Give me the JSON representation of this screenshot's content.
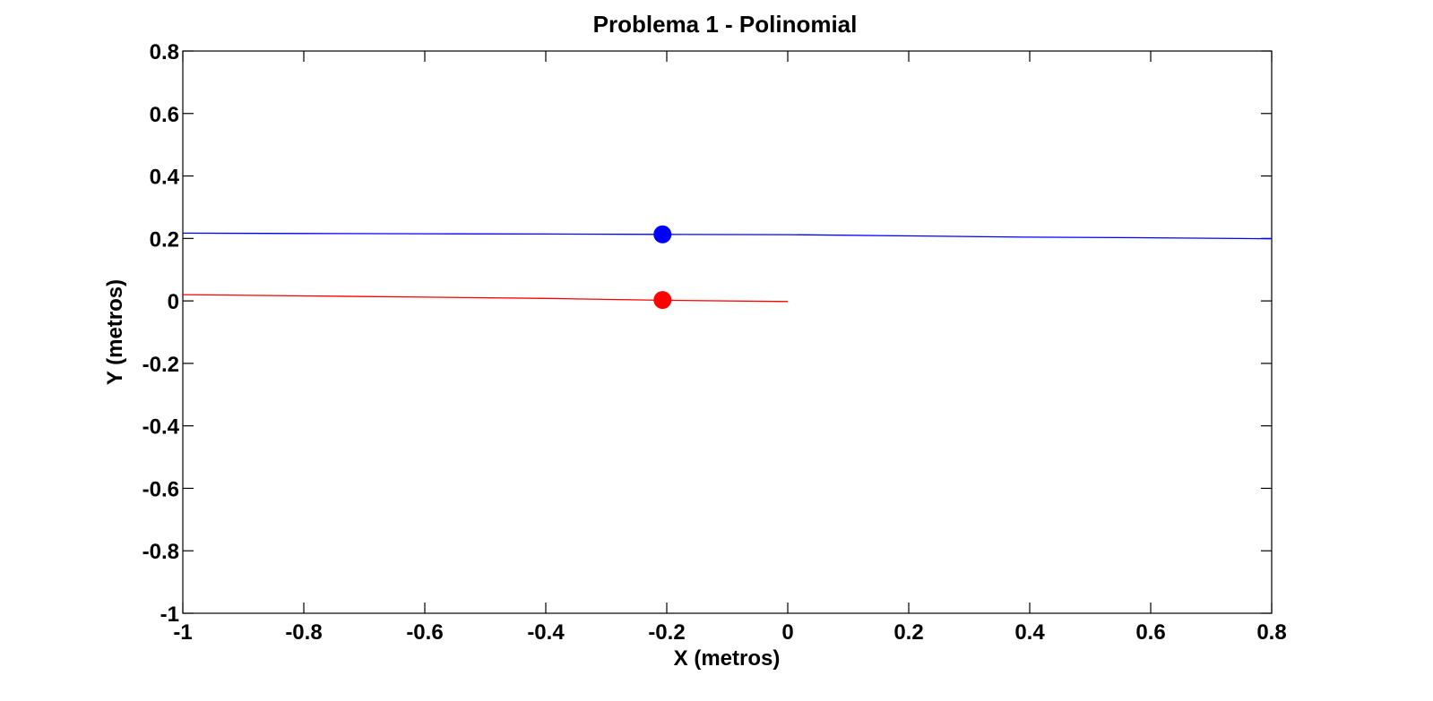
{
  "chart_data": {
    "type": "line",
    "title": "Problema 1 - Polinomial",
    "xlabel": "X (metros)",
    "ylabel": "Y (metros)",
    "xlim": [
      -1,
      0.8
    ],
    "ylim": [
      -1,
      0.8
    ],
    "xticks": [
      -1,
      -0.8,
      -0.6,
      -0.4,
      -0.2,
      0,
      0.2,
      0.4,
      0.6,
      0.8
    ],
    "xtick_labels": [
      "-1",
      "-0.8",
      "-0.6",
      "-0.4",
      "-0.2",
      "0",
      "0.2",
      "0.4",
      "0.6",
      "0.8"
    ],
    "yticks": [
      -1,
      -0.8,
      -0.6,
      -0.4,
      -0.2,
      0,
      0.2,
      0.4,
      0.6,
      0.8
    ],
    "ytick_labels": [
      "-1",
      "-0.8",
      "-0.6",
      "-0.4",
      "-0.2",
      "0",
      "0.2",
      "0.4",
      "0.6",
      "0.8"
    ],
    "grid": false,
    "series": [
      {
        "color": "#0000ff",
        "x": [
          -1.0,
          -0.8,
          -0.6,
          -0.4,
          -0.21,
          0.0,
          0.2,
          0.4,
          0.6,
          0.8
        ],
        "y": [
          0.217,
          0.216,
          0.215,
          0.214,
          0.213,
          0.212,
          0.208,
          0.204,
          0.202,
          0.199
        ]
      },
      {
        "color": "#ff0000",
        "x": [
          -1.0,
          -0.8,
          -0.6,
          -0.4,
          -0.21,
          0.0
        ],
        "y": [
          0.02,
          0.016,
          0.012,
          0.008,
          0.002,
          -0.002
        ]
      }
    ],
    "markers": [
      {
        "x": -0.207,
        "y": 0.213,
        "color": "#0000ff"
      },
      {
        "x": -0.207,
        "y": 0.003,
        "color": "#ff0000"
      }
    ]
  }
}
